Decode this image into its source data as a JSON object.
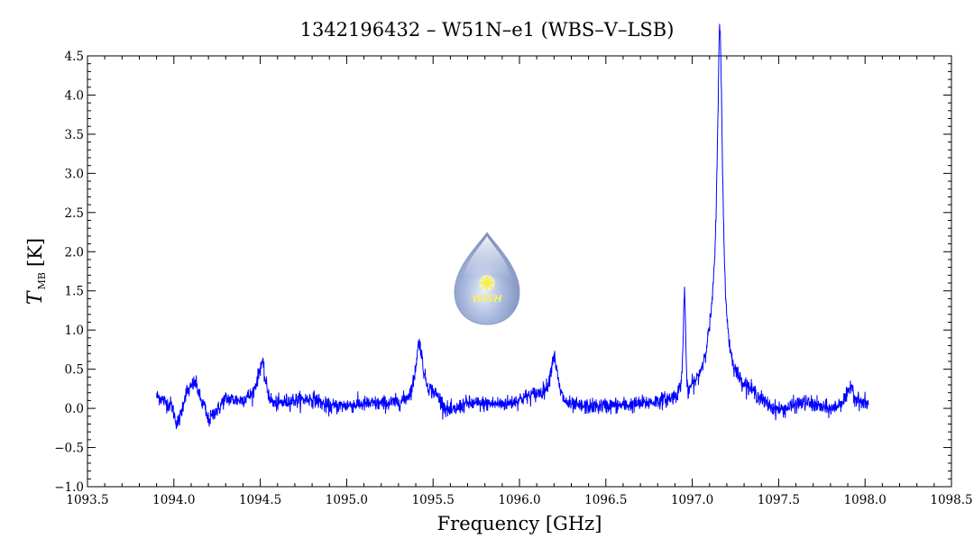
{
  "chart_data": {
    "type": "line",
    "title": "1342196432 – W51N–e1 (WBS–V–LSB)",
    "xlabel": "Frequency [GHz]",
    "ylabel": {
      "symbol": "T",
      "subscript": "MB",
      "unit": "[K]"
    },
    "xlim": [
      1093.5,
      1098.5
    ],
    "ylim": [
      -1.0,
      4.5
    ],
    "x_ticks": [
      "1093.5",
      "1094.0",
      "1094.5",
      "1095.0",
      "1095.5",
      "1096.0",
      "1096.5",
      "1097.0",
      "1097.5",
      "1098.0",
      "1098.5"
    ],
    "y_ticks": [
      "−1.0",
      "−0.5",
      "0.0",
      "0.5",
      "1.0",
      "1.5",
      "2.0",
      "2.5",
      "3.0",
      "3.5",
      "4.0",
      "4.5"
    ],
    "grid": false,
    "series": [
      {
        "color": "#0000ff",
        "x_range": [
          1093.9,
          1098.02
        ],
        "noise_rms": 0.05,
        "baseline": [
          [
            1093.9,
            0.15
          ],
          [
            1093.98,
            0.05
          ],
          [
            1094.02,
            -0.18
          ],
          [
            1094.08,
            0.22
          ],
          [
            1094.12,
            0.32
          ],
          [
            1094.17,
            0.05
          ],
          [
            1094.2,
            -0.15
          ],
          [
            1094.25,
            -0.02
          ],
          [
            1094.3,
            0.12
          ],
          [
            1094.38,
            0.1
          ],
          [
            1094.44,
            0.15
          ],
          [
            1094.5,
            0.35
          ],
          [
            1094.58,
            0.05
          ],
          [
            1094.7,
            0.1
          ],
          [
            1094.8,
            0.12
          ],
          [
            1094.9,
            0.02
          ],
          [
            1095.1,
            0.05
          ],
          [
            1095.3,
            0.05
          ],
          [
            1095.5,
            0.15
          ],
          [
            1095.6,
            -0.05
          ],
          [
            1095.7,
            0.05
          ],
          [
            1095.9,
            0.05
          ],
          [
            1096.1,
            0.15
          ],
          [
            1096.3,
            0.0
          ],
          [
            1096.6,
            0.02
          ],
          [
            1096.85,
            0.05
          ],
          [
            1097.0,
            0.05
          ],
          [
            1097.3,
            0.15
          ],
          [
            1097.5,
            -0.05
          ],
          [
            1097.65,
            0.05
          ],
          [
            1097.8,
            -0.02
          ],
          [
            1097.9,
            0.1
          ],
          [
            1098.02,
            0.05
          ]
        ],
        "peaks": [
          {
            "center": 1095.42,
            "height": 0.72,
            "width": 0.025
          },
          {
            "center": 1096.2,
            "height": 0.58,
            "width": 0.025
          },
          {
            "center": 1096.955,
            "height": 1.35,
            "width": 0.008
          },
          {
            "center": 1097.16,
            "height": 4.15,
            "width": 0.018
          },
          {
            "center": 1097.13,
            "height": 0.75,
            "width": 0.07
          },
          {
            "center": 1094.51,
            "height": 0.25,
            "width": 0.015
          },
          {
            "center": 1097.92,
            "height": 0.22,
            "width": 0.012
          }
        ],
        "dips": [
          {
            "center": 1096.975,
            "depth": 0.22,
            "width": 0.01
          }
        ]
      }
    ],
    "logo": {
      "text": "WISH"
    }
  }
}
